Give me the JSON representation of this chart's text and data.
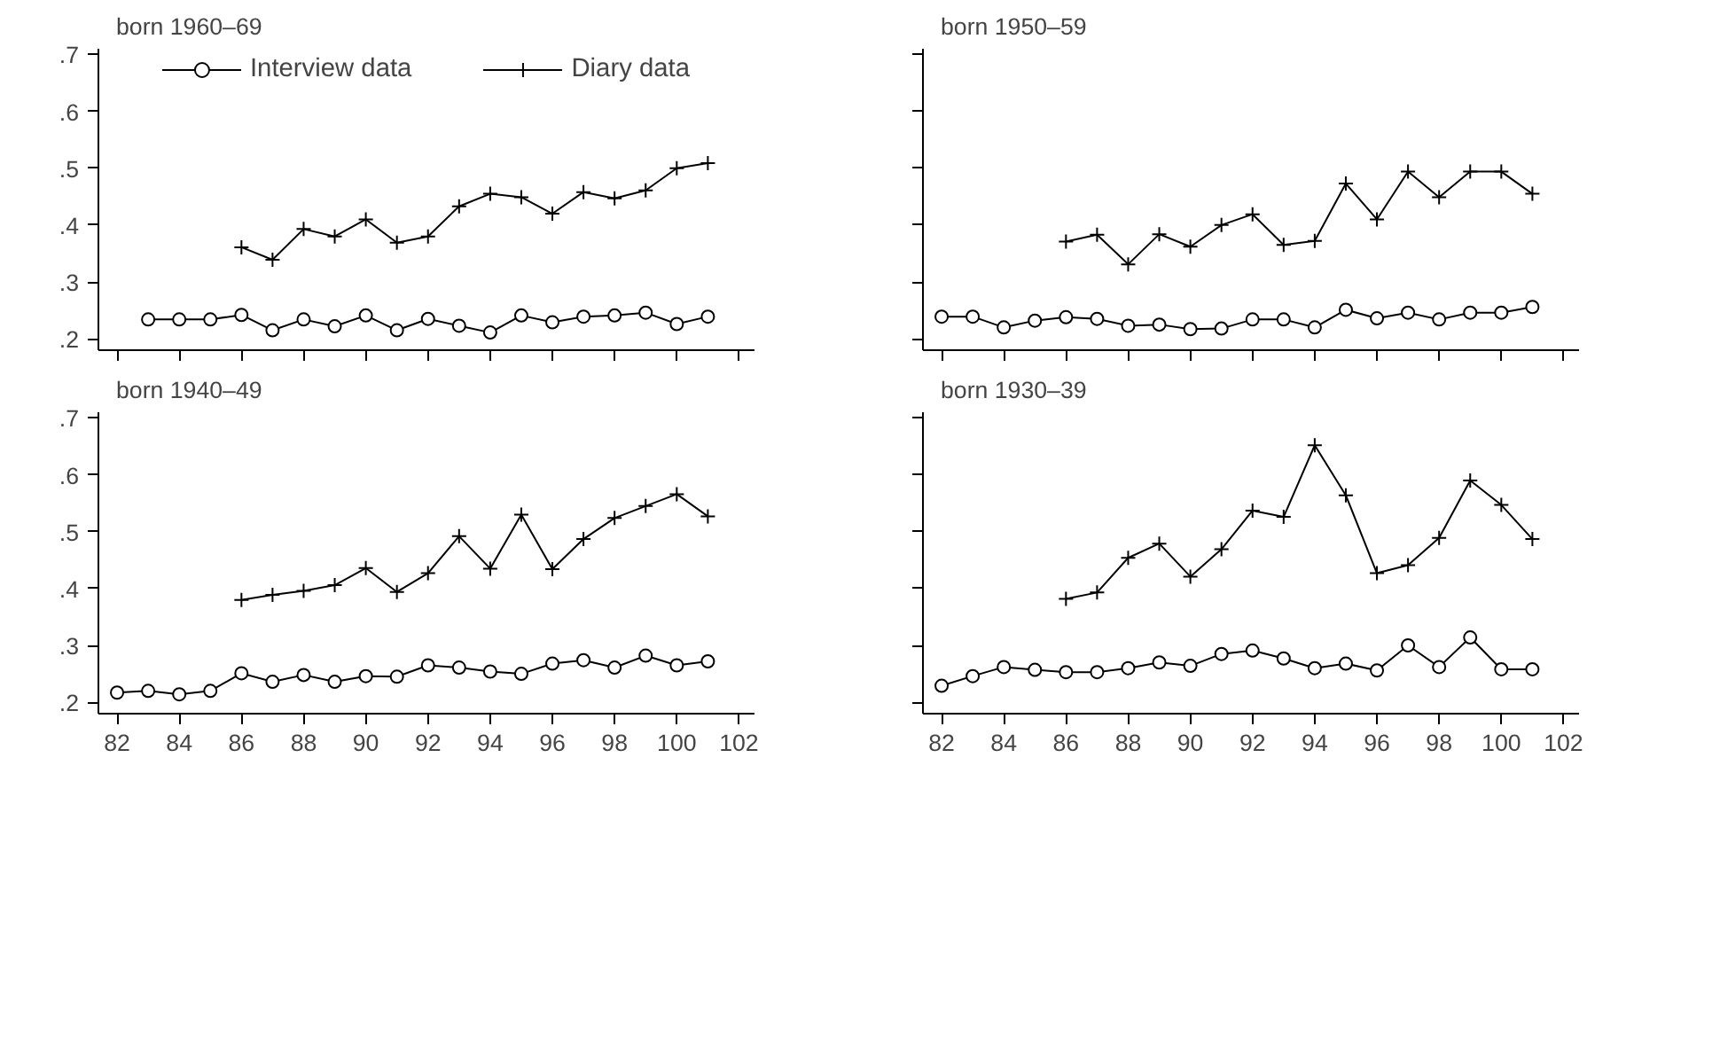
{
  "chart_data": [
    {
      "type": "line",
      "title": "born 1960–69",
      "legend": "top",
      "tick_labels": "y",
      "xlim": [
        81.4,
        102.5
      ],
      "ylim": [
        0.18,
        0.71
      ],
      "xticks": [
        {
          "value": 82,
          "label": null
        },
        {
          "value": 84,
          "label": null
        },
        {
          "value": 86,
          "label": null
        },
        {
          "value": 88,
          "label": null
        },
        {
          "value": 90,
          "label": null
        },
        {
          "value": 92,
          "label": null
        },
        {
          "value": 94,
          "label": null
        },
        {
          "value": 96,
          "label": null
        },
        {
          "value": 98,
          "label": null
        },
        {
          "value": 100,
          "label": null
        },
        {
          "value": 102,
          "label": null
        }
      ],
      "yticks": [
        {
          "value": 0.2,
          "label": ".2"
        },
        {
          "value": 0.3,
          "label": ".3"
        },
        {
          "value": 0.4,
          "label": ".4"
        },
        {
          "value": 0.5,
          "label": ".5"
        },
        {
          "value": 0.6,
          "label": ".6"
        },
        {
          "value": 0.7,
          "label": ".7"
        }
      ],
      "grid": false,
      "series": [
        {
          "name": "Interview data",
          "color": "#000000",
          "marker": "circle",
          "x": [
            83,
            84,
            85,
            86,
            87,
            88,
            89,
            90,
            91,
            92,
            93,
            94,
            95,
            96,
            97,
            98,
            99,
            100,
            101
          ],
          "values": [
            0.234,
            0.234,
            0.234,
            0.242,
            0.215,
            0.234,
            0.222,
            0.241,
            0.215,
            0.235,
            0.223,
            0.211,
            0.241,
            0.229,
            0.239,
            0.241,
            0.246,
            0.226,
            0.239
          ]
        },
        {
          "name": "Diary data",
          "color": "#000000",
          "marker": "cross",
          "x": [
            86,
            87,
            88,
            89,
            90,
            91,
            92,
            93,
            94,
            95,
            96,
            97,
            98,
            99,
            100,
            101
          ],
          "values": [
            0.361,
            0.339,
            0.393,
            0.38,
            0.41,
            0.369,
            0.38,
            0.433,
            0.455,
            0.449,
            0.42,
            0.458,
            0.447,
            0.461,
            0.5,
            0.509
          ]
        }
      ]
    },
    {
      "type": "line",
      "title": "born 1950–59",
      "tick_labels": false,
      "xlim": [
        81.4,
        102.5
      ],
      "ylim": [
        0.18,
        0.71
      ],
      "xticks": [
        {
          "value": 82,
          "label": null
        },
        {
          "value": 84,
          "label": null
        },
        {
          "value": 86,
          "label": null
        },
        {
          "value": 88,
          "label": null
        },
        {
          "value": 90,
          "label": null
        },
        {
          "value": 92,
          "label": null
        },
        {
          "value": 94,
          "label": null
        },
        {
          "value": 96,
          "label": null
        },
        {
          "value": 98,
          "label": null
        },
        {
          "value": 100,
          "label": null
        },
        {
          "value": 102,
          "label": null
        }
      ],
      "yticks": [
        {
          "value": 0.2,
          "label": null
        },
        {
          "value": 0.3,
          "label": null
        },
        {
          "value": 0.4,
          "label": null
        },
        {
          "value": 0.5,
          "label": null
        },
        {
          "value": 0.6,
          "label": null
        },
        {
          "value": 0.7,
          "label": null
        }
      ],
      "grid": false,
      "series": [
        {
          "color": "#000000",
          "marker": "circle",
          "x": [
            82,
            83,
            84,
            85,
            86,
            87,
            88,
            89,
            90,
            91,
            92,
            93,
            94,
            95,
            96,
            97,
            98,
            99,
            100,
            101
          ],
          "values": [
            0.239,
            0.239,
            0.22,
            0.232,
            0.238,
            0.235,
            0.223,
            0.225,
            0.217,
            0.218,
            0.234,
            0.234,
            0.22,
            0.251,
            0.236,
            0.246,
            0.234,
            0.246,
            0.246,
            0.256
          ]
        },
        {
          "color": "#000000",
          "marker": "cross",
          "x": [
            86,
            87,
            88,
            89,
            90,
            91,
            92,
            93,
            94,
            95,
            96,
            97,
            98,
            99,
            100,
            101
          ],
          "values": [
            0.371,
            0.383,
            0.331,
            0.384,
            0.362,
            0.4,
            0.419,
            0.365,
            0.372,
            0.473,
            0.41,
            0.494,
            0.449,
            0.494,
            0.494,
            0.455
          ]
        }
      ]
    },
    {
      "type": "line",
      "title": "born 1940–49",
      "xlim": [
        81.4,
        102.5
      ],
      "ylim": [
        0.18,
        0.71
      ],
      "xticks": [
        82,
        84,
        86,
        88,
        90,
        92,
        94,
        96,
        98,
        100,
        102
      ],
      "yticks": [
        {
          "value": 0.2,
          "label": ".2"
        },
        {
          "value": 0.3,
          "label": ".3"
        },
        {
          "value": 0.4,
          "label": ".4"
        },
        {
          "value": 0.5,
          "label": ".5"
        },
        {
          "value": 0.6,
          "label": ".6"
        },
        {
          "value": 0.7,
          "label": ".7"
        }
      ],
      "grid": false,
      "series": [
        {
          "color": "#000000",
          "marker": "circle",
          "x": [
            82,
            83,
            84,
            85,
            86,
            87,
            88,
            89,
            90,
            91,
            92,
            93,
            94,
            95,
            96,
            97,
            98,
            99,
            100,
            101
          ],
          "values": [
            0.217,
            0.22,
            0.214,
            0.22,
            0.251,
            0.236,
            0.248,
            0.236,
            0.246,
            0.245,
            0.265,
            0.261,
            0.254,
            0.25,
            0.268,
            0.274,
            0.261,
            0.282,
            0.265,
            0.272
          ]
        },
        {
          "color": "#000000",
          "marker": "cross",
          "x": [
            86,
            87,
            88,
            89,
            90,
            91,
            92,
            93,
            94,
            95,
            96,
            97,
            98,
            99,
            100,
            101
          ],
          "values": [
            0.38,
            0.389,
            0.396,
            0.406,
            0.436,
            0.394,
            0.427,
            0.492,
            0.435,
            0.53,
            0.434,
            0.487,
            0.524,
            0.545,
            0.566,
            0.527
          ]
        }
      ]
    },
    {
      "type": "line",
      "title": "born 1930–39",
      "tick_labels": "x",
      "xlim": [
        81.4,
        102.5
      ],
      "ylim": [
        0.18,
        0.71
      ],
      "xticks": [
        82,
        84,
        86,
        88,
        90,
        92,
        94,
        96,
        98,
        100,
        102
      ],
      "yticks": [
        {
          "value": 0.2,
          "label": null
        },
        {
          "value": 0.3,
          "label": null
        },
        {
          "value": 0.4,
          "label": null
        },
        {
          "value": 0.5,
          "label": null
        },
        {
          "value": 0.6,
          "label": null
        },
        {
          "value": 0.7,
          "label": null
        }
      ],
      "grid": false,
      "series": [
        {
          "color": "#000000",
          "marker": "circle",
          "x": [
            82,
            83,
            84,
            85,
            86,
            87,
            88,
            89,
            90,
            91,
            92,
            93,
            94,
            95,
            96,
            97,
            98,
            99,
            100,
            101
          ],
          "values": [
            0.229,
            0.246,
            0.262,
            0.257,
            0.253,
            0.253,
            0.26,
            0.27,
            0.264,
            0.285,
            0.291,
            0.277,
            0.26,
            0.268,
            0.256,
            0.3,
            0.262,
            0.314,
            0.258,
            0.258
          ]
        },
        {
          "color": "#000000",
          "marker": "cross",
          "x": [
            86,
            87,
            88,
            89,
            90,
            91,
            92,
            93,
            94,
            95,
            96,
            97,
            98,
            99,
            100,
            101
          ],
          "values": [
            0.382,
            0.393,
            0.454,
            0.479,
            0.421,
            0.469,
            0.537,
            0.526,
            0.652,
            0.564,
            0.427,
            0.441,
            0.489,
            0.59,
            0.547,
            0.487
          ]
        }
      ]
    }
  ]
}
